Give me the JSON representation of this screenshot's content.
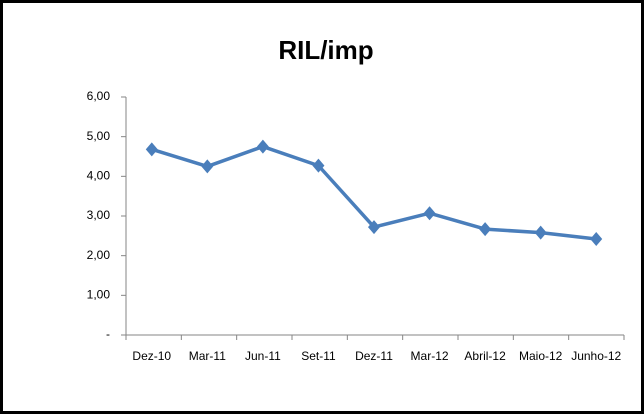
{
  "chart_data": {
    "type": "line",
    "title": "RIL/imp",
    "categories": [
      "Dez-10",
      "Mar-11",
      "Jun-11",
      "Set-11",
      "Dez-11",
      "Mar-12",
      "Abril-12",
      "Maio-12",
      "Junho-12"
    ],
    "values": [
      4.68,
      4.25,
      4.75,
      4.27,
      2.72,
      3.07,
      2.67,
      2.58,
      2.42
    ],
    "color": "#4a7ebb",
    "ylim": [
      0,
      6
    ],
    "yticks": [
      {
        "value": 0,
        "label": "-"
      },
      {
        "value": 1,
        "label": "1,00"
      },
      {
        "value": 2,
        "label": "2,00"
      },
      {
        "value": 3,
        "label": "3,00"
      },
      {
        "value": 4,
        "label": "4,00"
      },
      {
        "value": 5,
        "label": "5,00"
      },
      {
        "value": 6,
        "label": "6,00"
      }
    ],
    "grid": false
  }
}
